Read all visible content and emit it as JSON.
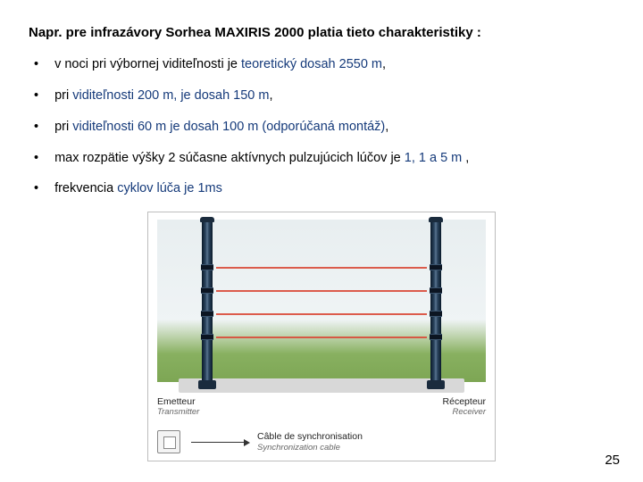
{
  "heading": "Napr. pre infrazávory Sorhea MAXIRIS 2000 platia tieto charakteristiky  :",
  "bullets": [
    {
      "pre": "v noci pri výbornej viditeľnosti je ",
      "hl": "teoretický dosah 2550 m",
      "post": ","
    },
    {
      "pre": "pri ",
      "hl": "viditeľnosti 200 m, je dosah  150 m",
      "post": ","
    },
    {
      "pre": "pri ",
      "hl": "viditeľnosti 60 m je dosah 100 m (odporúčaná montáž)",
      "post": ","
    },
    {
      "pre": "max rozpätie výšky 2 súčasne aktívnych pulzujúcich lúčov je ",
      "hl": "1, 1 a 5 m ",
      "post": ","
    },
    {
      "pre": "frekvencia ",
      "hl": "cyklov lúča je 1ms",
      "post": ""
    }
  ],
  "diagram": {
    "left_label_main": "Emetteur",
    "left_label_sub": "Transmitter",
    "right_label_main": "Récepteur",
    "right_label_sub": "Receiver",
    "cable_main": "Câble de synchronisation",
    "cable_sub": "Synchronization cable",
    "colors": {
      "beam": "#d94a3a",
      "pole_dark": "#0a1a2a",
      "grass": "#88b060",
      "sky": "#e8eef0",
      "border": "#bdbdbd"
    }
  },
  "page_number": "25"
}
